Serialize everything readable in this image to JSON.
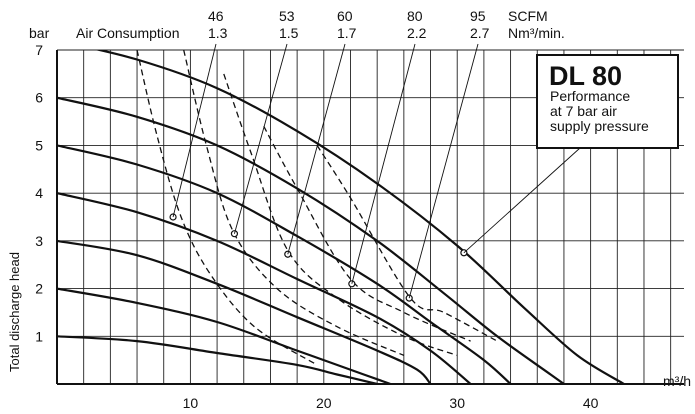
{
  "chart_data": {
    "type": "line",
    "title": "DL 80",
    "subtitle": [
      "Performance",
      "at 7 bar air",
      "supply pressure"
    ],
    "xlabel": "m³/h",
    "ylabel": "Total discharge head",
    "y_unit": "bar",
    "xlim": [
      0,
      47
    ],
    "ylim": [
      0,
      7
    ],
    "x_ticks": [
      "10",
      "20",
      "30",
      "40"
    ],
    "y_ticks": [
      "1",
      "2",
      "3",
      "4",
      "5",
      "6",
      "7"
    ],
    "grid": true,
    "air_consumption": {
      "label": "Air Consumption",
      "unit_scfm": "SCFM",
      "unit_nm3": "Nm³/min.",
      "values_scfm": [
        "46",
        "53",
        "60",
        "80",
        "95"
      ],
      "values_nm3": [
        "1.3",
        "1.5",
        "1.7",
        "2.2",
        "2.7"
      ]
    },
    "series": [
      {
        "values": [
          [
            0,
            7.2
          ],
          [
            6,
            6.8
          ],
          [
            12,
            6.2
          ],
          [
            18,
            5.3
          ],
          [
            24,
            4.2
          ],
          [
            30,
            2.9
          ],
          [
            35,
            1.6
          ],
          [
            39,
            0.6
          ],
          [
            42.5,
            0
          ]
        ]
      },
      {
        "values": [
          [
            0,
            6.0
          ],
          [
            6,
            5.6
          ],
          [
            12,
            5.0
          ],
          [
            18,
            4.1
          ],
          [
            24,
            3.0
          ],
          [
            29,
            1.9
          ],
          [
            33,
            1.0
          ],
          [
            37,
            0.2
          ],
          [
            38,
            0
          ]
        ]
      },
      {
        "values": [
          [
            0,
            5.0
          ],
          [
            6,
            4.6
          ],
          [
            12,
            4.0
          ],
          [
            18,
            3.1
          ],
          [
            24,
            2.1
          ],
          [
            28,
            1.3
          ],
          [
            32,
            0.5
          ],
          [
            34,
            0
          ]
        ]
      },
      {
        "values": [
          [
            0,
            4.0
          ],
          [
            6,
            3.6
          ],
          [
            12,
            3.0
          ],
          [
            18,
            2.2
          ],
          [
            24,
            1.4
          ],
          [
            28,
            0.7
          ],
          [
            31,
            0
          ]
        ]
      },
      {
        "values": [
          [
            0,
            3.0
          ],
          [
            6,
            2.7
          ],
          [
            12,
            2.1
          ],
          [
            18,
            1.4
          ],
          [
            24,
            0.7
          ],
          [
            27,
            0.3
          ],
          [
            28,
            0
          ]
        ]
      },
      {
        "values": [
          [
            0,
            2.0
          ],
          [
            6,
            1.7
          ],
          [
            12,
            1.3
          ],
          [
            18,
            0.7
          ],
          [
            23,
            0.2
          ],
          [
            25,
            0
          ]
        ]
      },
      {
        "values": [
          [
            0,
            1.0
          ],
          [
            6,
            0.9
          ],
          [
            12,
            0.65
          ],
          [
            18,
            0.4
          ],
          [
            21,
            0.2
          ],
          [
            24,
            0
          ]
        ]
      }
    ],
    "air_curves": [
      {
        "values": [
          [
            6.0,
            7.0
          ],
          [
            7.5,
            5.2
          ],
          [
            9.3,
            3.5
          ],
          [
            11.5,
            2.3
          ],
          [
            14.8,
            1.2
          ],
          [
            19.5,
            0.4
          ]
        ]
      },
      {
        "values": [
          [
            9.5,
            7.0
          ],
          [
            11.2,
            5.0
          ],
          [
            13.2,
            3.2
          ],
          [
            16.5,
            2.0
          ],
          [
            21,
            1.2
          ],
          [
            26,
            0.6
          ]
        ]
      },
      {
        "values": [
          [
            12.5,
            6.5
          ],
          [
            14.6,
            4.8
          ],
          [
            17.3,
            2.8
          ],
          [
            21,
            1.8
          ],
          [
            26,
            1.0
          ],
          [
            30,
            0.6
          ]
        ]
      },
      {
        "values": [
          [
            15.5,
            5.4
          ],
          [
            18,
            4.1
          ],
          [
            22,
            2.2
          ],
          [
            26,
            1.5
          ],
          [
            31,
            0.9
          ]
        ]
      },
      {
        "values": [
          [
            19.5,
            5.0
          ],
          [
            22,
            3.9
          ],
          [
            26.5,
            1.8
          ],
          [
            29,
            1.5
          ],
          [
            33,
            0.9
          ]
        ]
      }
    ],
    "markers": [
      [
        8.7,
        3.5
      ],
      [
        13.3,
        3.15
      ],
      [
        17.3,
        2.72
      ],
      [
        22.1,
        2.1
      ],
      [
        26.4,
        1.8
      ],
      [
        30.5,
        2.75
      ]
    ],
    "caption_markers": [
      "46",
      "53",
      "60",
      "80",
      "95"
    ]
  }
}
